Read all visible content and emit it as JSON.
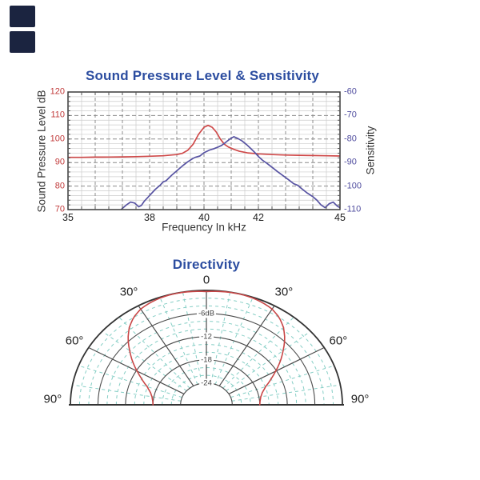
{
  "page": {
    "background": "#ffffff"
  },
  "decorations": {
    "block_top_color": "#1b2440",
    "block_bottom_color": "#1b2440"
  },
  "chart_data": [
    {
      "type": "line",
      "title": "Sound Pressure Level & Sensitivity",
      "xlabel": "Frequency In kHz",
      "ylabel_left": "Sound Pressure Level dB",
      "ylabel_right": "Sensitivity",
      "xlim": [
        35,
        45
      ],
      "ylim_left": [
        70,
        120
      ],
      "ylim_right": [
        -110,
        -60
      ],
      "x_tick_labels": [
        35,
        38,
        40,
        42,
        45
      ],
      "x_grid_major_step": 1,
      "x_grid_minor_step": 0.5,
      "y_grid_major_step": 10,
      "y_grid_minor_step": 2,
      "y_ticks_left": [
        120,
        110,
        100,
        90,
        80,
        70
      ],
      "y_ticks_right": [
        -60,
        -70,
        -80,
        -90,
        -100,
        -110
      ],
      "grid": true,
      "legend_position": "none",
      "colors": {
        "title": "#2c4da0",
        "tick_left": "#c13b3b",
        "tick_right": "#4f4c9e",
        "axis_text": "#333333",
        "frame": "#3a3a3a",
        "grid_major": "#8c8c8c",
        "grid_minor": "#cccccc"
      },
      "series": [
        {
          "name": "Sound Pressure Level",
          "axis": "left",
          "color": "#cf4a4a",
          "points": [
            [
              35,
              92.2
            ],
            [
              35.5,
              92.2
            ],
            [
              36,
              92.3
            ],
            [
              36.5,
              92.35
            ],
            [
              37,
              92.4
            ],
            [
              37.5,
              92.5
            ],
            [
              38,
              92.7
            ],
            [
              38.5,
              92.9
            ],
            [
              39,
              93.4
            ],
            [
              39.2,
              93.9
            ],
            [
              39.4,
              95.2
            ],
            [
              39.6,
              97.8
            ],
            [
              39.8,
              102
            ],
            [
              40,
              105
            ],
            [
              40.15,
              105.8
            ],
            [
              40.3,
              105
            ],
            [
              40.45,
              103
            ],
            [
              40.6,
              100
            ],
            [
              40.75,
              97.8
            ],
            [
              40.9,
              96.6
            ],
            [
              41.1,
              95.6
            ],
            [
              41.3,
              94.8
            ],
            [
              41.6,
              94.1
            ],
            [
              42,
              93.7
            ],
            [
              42.5,
              93.4
            ],
            [
              43,
              93.2
            ],
            [
              43.5,
              93.1
            ],
            [
              44,
              93
            ],
            [
              44.5,
              92.9
            ],
            [
              45,
              92.8
            ]
          ]
        },
        {
          "name": "Sensitivity",
          "axis": "right",
          "color": "#5753a2",
          "points": [
            [
              36.9,
              -110.6
            ],
            [
              37,
              -109.5
            ],
            [
              37.15,
              -108
            ],
            [
              37.3,
              -106.8
            ],
            [
              37.45,
              -107.2
            ],
            [
              37.6,
              -108.8
            ],
            [
              37.7,
              -108.2
            ],
            [
              37.8,
              -106.5
            ],
            [
              38,
              -104
            ],
            [
              38.2,
              -101.5
            ],
            [
              38.4,
              -99.5
            ],
            [
              38.5,
              -98.2
            ],
            [
              38.6,
              -97.8
            ],
            [
              38.8,
              -95.5
            ],
            [
              39,
              -93.5
            ],
            [
              39.2,
              -91.5
            ],
            [
              39.4,
              -89.7
            ],
            [
              39.6,
              -88.2
            ],
            [
              39.7,
              -87.7
            ],
            [
              39.85,
              -87.2
            ],
            [
              40,
              -85.8
            ],
            [
              40.2,
              -84.7
            ],
            [
              40.35,
              -84.2
            ],
            [
              40.5,
              -83.5
            ],
            [
              40.65,
              -82.7
            ],
            [
              40.8,
              -81.4
            ],
            [
              40.95,
              -80
            ],
            [
              41.1,
              -79
            ],
            [
              41.25,
              -79.8
            ],
            [
              41.4,
              -80.8
            ],
            [
              41.55,
              -82.2
            ],
            [
              41.7,
              -83.8
            ],
            [
              41.85,
              -85.5
            ],
            [
              42,
              -87.4
            ],
            [
              42.15,
              -89
            ],
            [
              42.3,
              -90.2
            ],
            [
              42.5,
              -92
            ],
            [
              42.7,
              -93.8
            ],
            [
              42.9,
              -95.5
            ],
            [
              43.1,
              -97.2
            ],
            [
              43.3,
              -99
            ],
            [
              43.45,
              -99.7
            ],
            [
              43.6,
              -101.2
            ],
            [
              43.8,
              -103
            ],
            [
              44,
              -104.5
            ],
            [
              44.15,
              -106
            ],
            [
              44.3,
              -108
            ],
            [
              44.45,
              -109.2
            ],
            [
              44.6,
              -107.5
            ],
            [
              44.75,
              -106.8
            ],
            [
              44.9,
              -108.5
            ],
            [
              45,
              -109.2
            ]
          ]
        }
      ]
    },
    {
      "type": "polar_half",
      "title": "Directivity",
      "angle_labels": [
        {
          "deg": 0,
          "text": "0"
        },
        {
          "deg": 30,
          "text": "30°"
        },
        {
          "deg": 60,
          "text": "60°"
        },
        {
          "deg": 90,
          "text": "90°"
        }
      ],
      "r_tick_labels": [
        {
          "db": -6,
          "text": "-6dB"
        },
        {
          "db": -12,
          "text": "-12"
        },
        {
          "db": -18,
          "text": "-18"
        },
        {
          "db": -24,
          "text": "-24"
        }
      ],
      "r_major_db": [
        0,
        -6,
        -12,
        -18,
        -24
      ],
      "r_minor_step_db": 2,
      "r_range_db": [
        0,
        -24
      ],
      "angle_major_deg": [
        0,
        30,
        60,
        90
      ],
      "angle_minor_step_deg": 10,
      "colors": {
        "title": "#2c4da0",
        "major": "#4a4a4a",
        "outer": "#333333",
        "minor": "#85cec5",
        "angle_text": "#222222",
        "r_text": "#444444",
        "pattern": "#c84747"
      },
      "pattern_series": {
        "name": "beam response",
        "color": "#c84747",
        "points_deg_db": [
          [
            0,
            -0.3
          ],
          [
            5,
            -0.15
          ],
          [
            10,
            -0.05
          ],
          [
            15,
            -0.05
          ],
          [
            20,
            -0.2
          ],
          [
            25,
            -0.5
          ],
          [
            30,
            -1
          ],
          [
            35,
            -2
          ],
          [
            40,
            -3.5
          ],
          [
            45,
            -5.5
          ],
          [
            50,
            -7.8
          ],
          [
            55,
            -10
          ],
          [
            60,
            -12.2
          ],
          [
            65,
            -14.2
          ],
          [
            70,
            -15.9
          ],
          [
            75,
            -17
          ],
          [
            80,
            -17.6
          ],
          [
            85,
            -17.9
          ],
          [
            90,
            -18
          ]
        ]
      }
    }
  ]
}
